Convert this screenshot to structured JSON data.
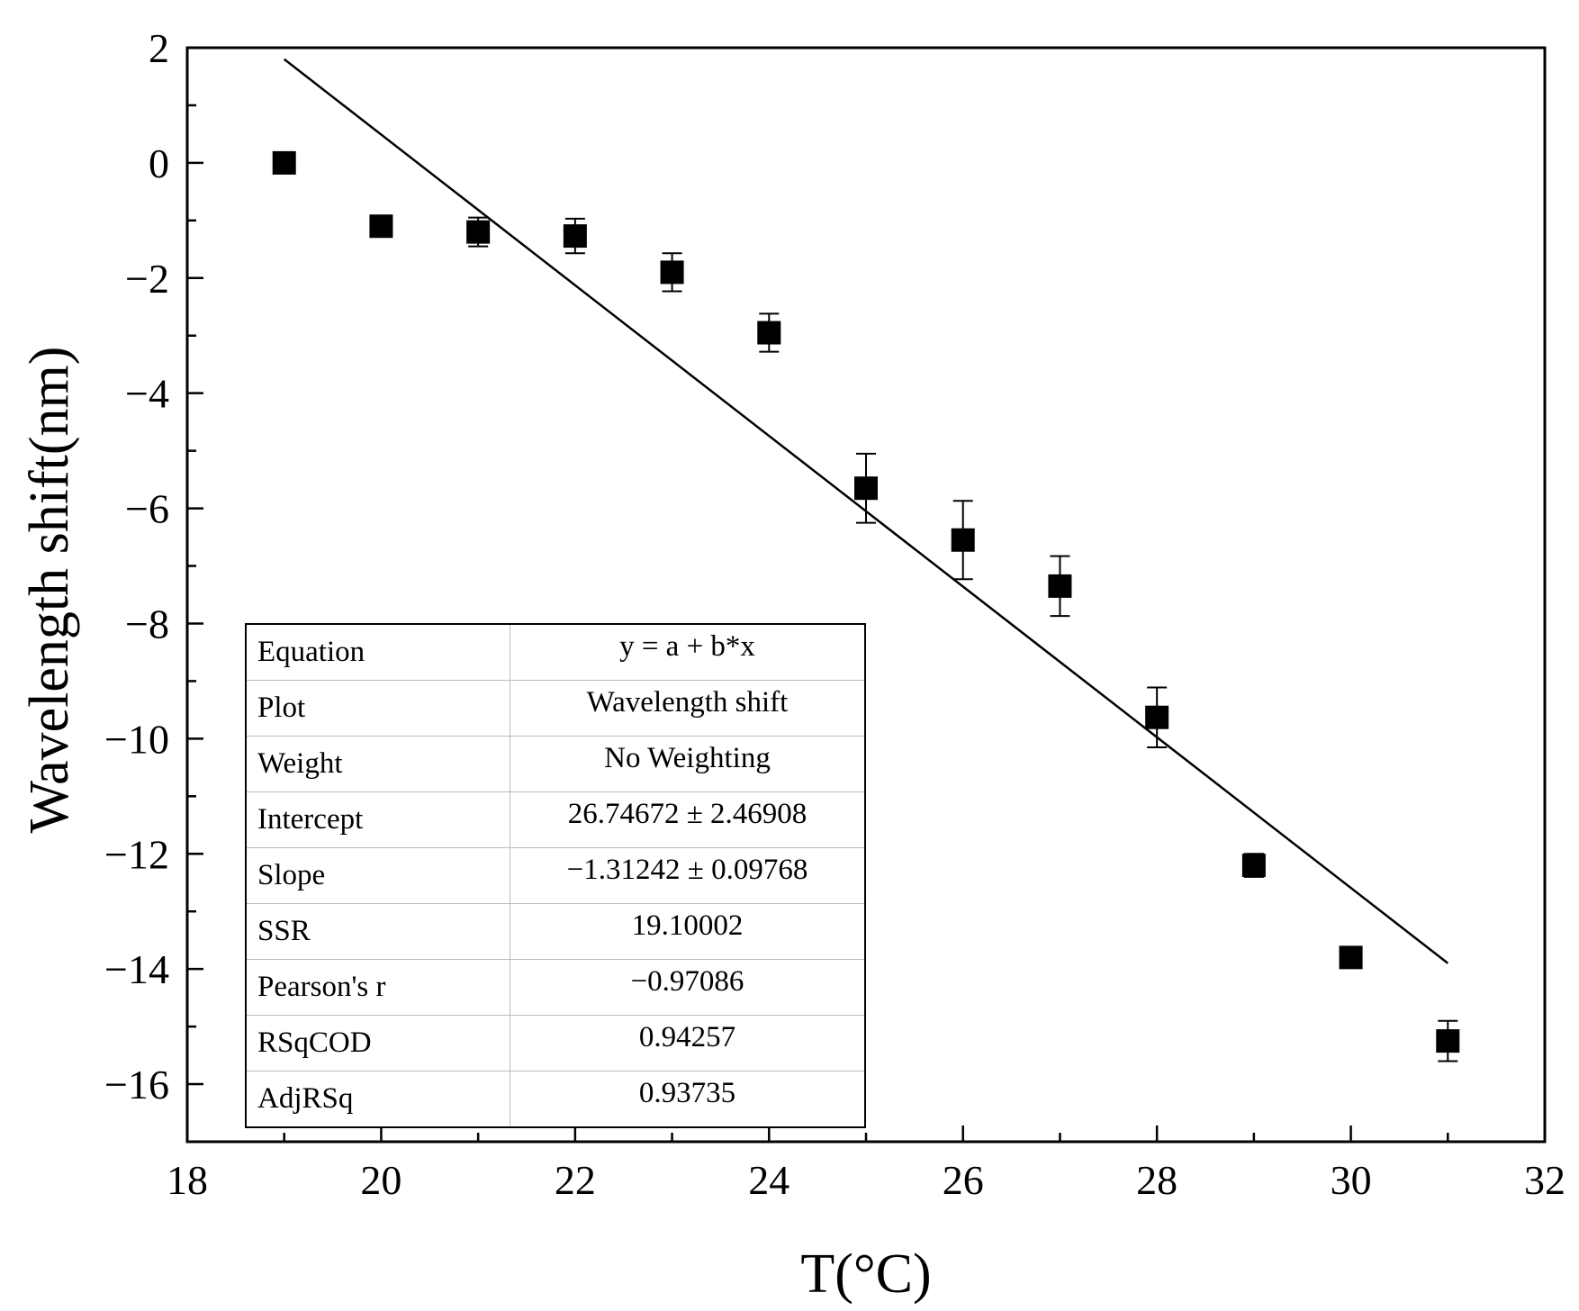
{
  "chart_data": {
    "type": "scatter",
    "title": "",
    "xlabel": "T(°C)",
    "ylabel": "Wavelength shift(nm)",
    "xlim": [
      18,
      32
    ],
    "ylim": [
      -17,
      2
    ],
    "xticks": [
      18,
      20,
      22,
      24,
      26,
      28,
      30,
      32
    ],
    "yticks": [
      2,
      0,
      -2,
      -4,
      -6,
      -8,
      -10,
      -12,
      -14,
      -16
    ],
    "ytick_labels": [
      "2",
      "0",
      "−2",
      "−4",
      "−6",
      "−8",
      "−10",
      "−12",
      "−14",
      "−16"
    ],
    "series": [
      {
        "name": "Wavelength shift",
        "marker": "square",
        "x": [
          19,
          20,
          21,
          22,
          23,
          24,
          25,
          26,
          27,
          28,
          29,
          30,
          31
        ],
        "y": [
          0,
          -1.1,
          -1.2,
          -1.27,
          -1.9,
          -2.95,
          -5.65,
          -6.55,
          -7.35,
          -9.63,
          -12.2,
          -13.8,
          -15.25
        ],
        "yerr": [
          0.05,
          0.18,
          0.25,
          0.3,
          0.33,
          0.33,
          0.6,
          0.68,
          0.52,
          0.52,
          0.2,
          0.05,
          0.35
        ]
      }
    ],
    "fit": {
      "x": [
        19,
        31
      ],
      "y": [
        1.8,
        -13.9
      ]
    },
    "stats_table": [
      {
        "key": "Equation",
        "value": "y = a + b*x"
      },
      {
        "key": "Plot",
        "value": "Wavelength shift"
      },
      {
        "key": "Weight",
        "value": "No Weighting"
      },
      {
        "key": "Intercept",
        "value": "26.74672 ± 2.46908"
      },
      {
        "key": "Slope",
        "value": "−1.31242 ± 0.09768"
      },
      {
        "key": "SSR",
        "value": "19.10002"
      },
      {
        "key": "Pearson's r",
        "value": "−0.97086"
      },
      {
        "key": "RSqCOD",
        "value": "0.94257"
      },
      {
        "key": "AdjRSq",
        "value": "0.93735"
      }
    ]
  }
}
